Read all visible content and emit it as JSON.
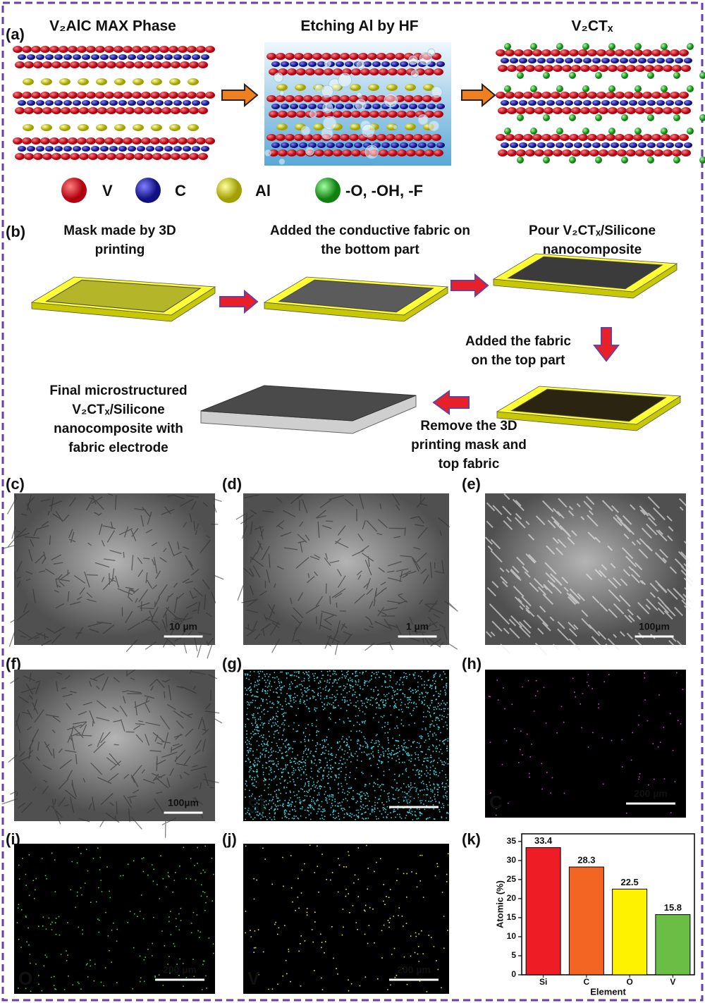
{
  "panel_a": {
    "label": "(a)",
    "titles": [
      "V₂AlC MAX Phase",
      "Etching Al by HF",
      "V₂CTₓ"
    ],
    "legend": [
      "V",
      "C",
      "Al",
      "-O, -OH, -F"
    ]
  },
  "panel_b": {
    "label": "(b)",
    "steps": [
      [
        "Mask made by 3D",
        "printing"
      ],
      [
        "Added the conductive fabric on",
        "the bottom part"
      ],
      [
        "Pour V₂CTₓ/Silicone",
        "nanocomposite"
      ],
      [
        "Added the fabric",
        "on the top part"
      ],
      [
        "Remove the 3D",
        "printing mask and",
        "top fabric"
      ],
      [
        "Final microstructured",
        "V₂CTₓ/Silicone",
        "nanocomposite with",
        "fabric electrode"
      ]
    ]
  },
  "micrographs": [
    {
      "label": "(c)",
      "scale": "10 µm"
    },
    {
      "label": "(d)",
      "scale": "1 µm"
    },
    {
      "label": "(e)",
      "scale": "100µm"
    },
    {
      "label": "(f)",
      "scale": "100µm"
    }
  ],
  "maps": [
    {
      "label": "(g)",
      "element": "Si",
      "scale": "200 µm"
    },
    {
      "label": "(h)",
      "element": "C",
      "scale": "200 µm"
    },
    {
      "label": "(i)",
      "element": "O",
      "scale": "200 µm"
    },
    {
      "label": "(j)",
      "element": "V",
      "scale": "200 µm"
    }
  ],
  "chart_data": {
    "type": "bar",
    "label": "(k)",
    "categories": [
      "Si",
      "C",
      "O",
      "V"
    ],
    "values": [
      33.4,
      28.3,
      22.5,
      15.8
    ],
    "colors": [
      "#ee1c25",
      "#f26522",
      "#fff200",
      "#6abd45"
    ],
    "ylabel": "Atomic (%)",
    "xlabel": "Element",
    "ylim": [
      0,
      37
    ],
    "yticks": [
      0,
      5,
      10,
      15,
      20,
      25,
      30,
      35
    ]
  }
}
